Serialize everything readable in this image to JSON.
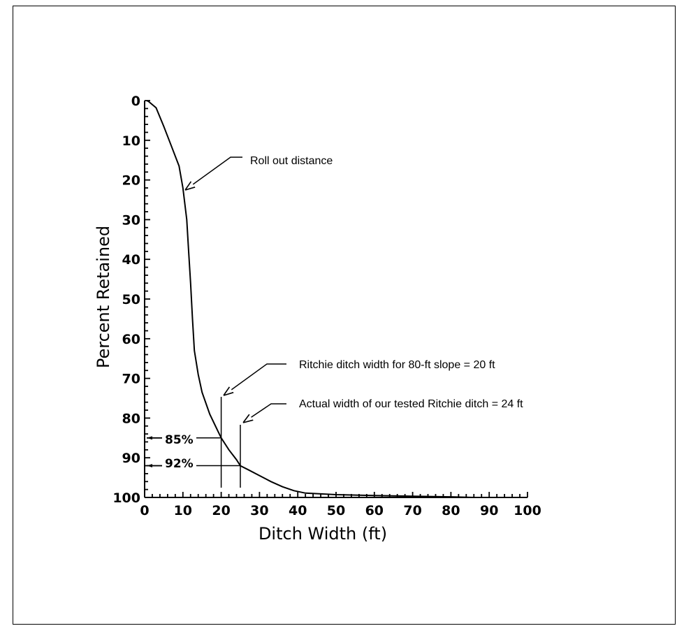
{
  "chart_data": {
    "type": "line",
    "xlabel": "Ditch Width (ft)",
    "ylabel": "Percent Retained",
    "xlim": [
      0,
      100
    ],
    "ylim": [
      0,
      100
    ],
    "y_inverted": true,
    "x_ticks": [
      0,
      10,
      20,
      30,
      40,
      50,
      60,
      70,
      80,
      90,
      100
    ],
    "y_ticks": [
      0,
      10,
      20,
      30,
      40,
      50,
      60,
      70,
      80,
      90,
      100
    ],
    "x_tick_labels": [
      "0",
      "10",
      "20",
      "30",
      "40",
      "50",
      "60",
      "70",
      "80",
      "90",
      "100"
    ],
    "y_tick_labels": [
      "0",
      "10",
      "20",
      "30",
      "40",
      "50",
      "60",
      "70",
      "80",
      "90",
      "100"
    ],
    "grid": false,
    "series": [
      {
        "points": [
          [
            0.5,
            0
          ],
          [
            1,
            0.2
          ],
          [
            3,
            1.8
          ],
          [
            5,
            6.5
          ],
          [
            7,
            11.5
          ],
          [
            9,
            16.5
          ],
          [
            10,
            22
          ],
          [
            11,
            30
          ],
          [
            11.5,
            38
          ],
          [
            12,
            46
          ],
          [
            12.5,
            55
          ],
          [
            13,
            63
          ],
          [
            14,
            69
          ],
          [
            15,
            73.5
          ],
          [
            17,
            79
          ],
          [
            19,
            83
          ],
          [
            20,
            85
          ],
          [
            22,
            88
          ],
          [
            24,
            90.5
          ],
          [
            25,
            92
          ],
          [
            27,
            93
          ],
          [
            30,
            94.5
          ],
          [
            33,
            96
          ],
          [
            36,
            97.3
          ],
          [
            39,
            98.3
          ],
          [
            42,
            98.9
          ],
          [
            46,
            99.1
          ],
          [
            50,
            99.3
          ],
          [
            60,
            99.5
          ],
          [
            70,
            99.7
          ],
          [
            80,
            99.85
          ],
          [
            86,
            100
          ],
          [
            100,
            100
          ]
        ]
      }
    ],
    "annotations": {
      "rollout": {
        "text": "Roll out distance"
      },
      "ritchie": {
        "text": "Ritchie ditch width for 80-ft slope = 20 ft",
        "x": 20
      },
      "actual": {
        "text": "Actual width of our tested Ritchie ditch = 24 ft",
        "x": 25
      },
      "p85": {
        "text": "85%",
        "y": 85
      },
      "p92": {
        "text": "92%",
        "y": 92
      }
    }
  }
}
